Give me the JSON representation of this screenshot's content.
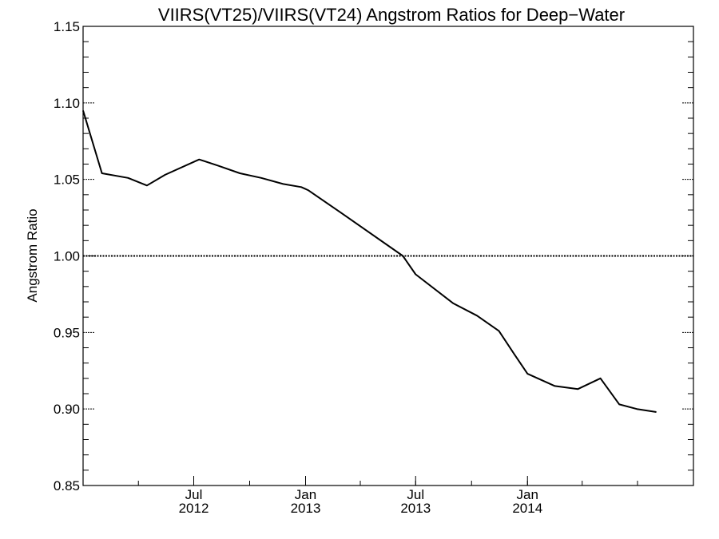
{
  "chart_data": {
    "type": "line",
    "title": "VIIRS(VT25)/VIIRS(VT24)  Angstrom Ratios for Deep−Water",
    "xlabel": "",
    "ylabel": "Angstrom Ratio",
    "ylim": [
      0.85,
      1.15
    ],
    "xlim": [
      "2012-01-01",
      "2014-10-01"
    ],
    "yticks": [
      "0.85",
      "0.90",
      "0.95",
      "1.00",
      "1.05",
      "1.10",
      "1.15"
    ],
    "xticks": [
      {
        "month": "Jul",
        "year": "2012",
        "date": "2012-07-01"
      },
      {
        "month": "Jan",
        "year": "2013",
        "date": "2013-01-01"
      },
      {
        "month": "Jul",
        "year": "2013",
        "date": "2013-07-01"
      },
      {
        "month": "Jan",
        "year": "2014",
        "date": "2014-01-01"
      }
    ],
    "reference_line": {
      "y": 1.0,
      "style": "dotted"
    },
    "grid": false,
    "series": [
      {
        "color": "#000000",
        "points": [
          {
            "x": "2012-01-01",
            "y": 1.095
          },
          {
            "x": "2012-02-01",
            "y": 1.054
          },
          {
            "x": "2012-03-15",
            "y": 1.051
          },
          {
            "x": "2012-04-15",
            "y": 1.046
          },
          {
            "x": "2012-05-15",
            "y": 1.053
          },
          {
            "x": "2012-07-10",
            "y": 1.063
          },
          {
            "x": "2012-08-10",
            "y": 1.059
          },
          {
            "x": "2012-09-15",
            "y": 1.054
          },
          {
            "x": "2012-10-20",
            "y": 1.051
          },
          {
            "x": "2012-11-25",
            "y": 1.047
          },
          {
            "x": "2012-12-25",
            "y": 1.045
          },
          {
            "x": "2013-01-05",
            "y": 1.043
          },
          {
            "x": "2013-03-01",
            "y": 1.028
          },
          {
            "x": "2013-06-10",
            "y": 1.0
          },
          {
            "x": "2013-07-01",
            "y": 0.988
          },
          {
            "x": "2013-09-01",
            "y": 0.969
          },
          {
            "x": "2013-10-10",
            "y": 0.961
          },
          {
            "x": "2013-11-15",
            "y": 0.951
          },
          {
            "x": "2013-12-10",
            "y": 0.936
          },
          {
            "x": "2014-01-01",
            "y": 0.923
          },
          {
            "x": "2014-02-15",
            "y": 0.915
          },
          {
            "x": "2014-03-25",
            "y": 0.913
          },
          {
            "x": "2014-05-01",
            "y": 0.92
          },
          {
            "x": "2014-06-01",
            "y": 0.903
          },
          {
            "x": "2014-06-30",
            "y": 0.9
          },
          {
            "x": "2014-08-01",
            "y": 0.898
          }
        ]
      }
    ]
  }
}
